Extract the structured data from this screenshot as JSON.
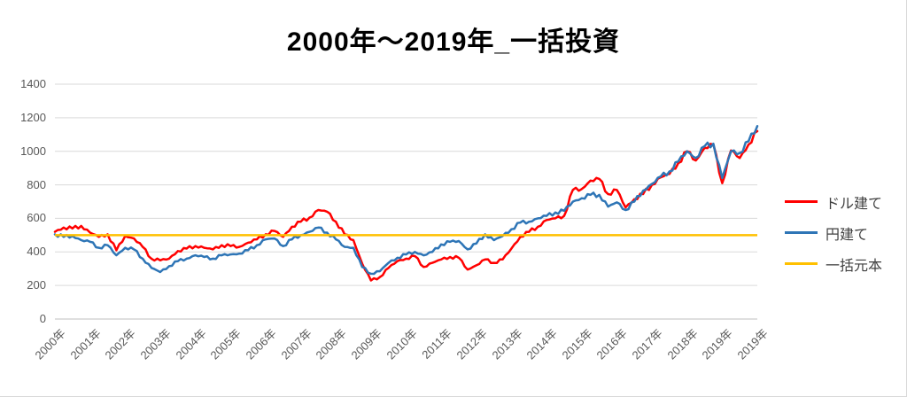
{
  "title": "2000年～2019年_一括投資",
  "colors": {
    "dollar_series": "#ff0000",
    "yen_series": "#2e75b6",
    "principal_line": "#ffc000",
    "gridline": "#d9d9d9",
    "axis_line": "#bfbfbf",
    "tick_text": "#595959",
    "legend_text": "#404040",
    "background": "#ffffff"
  },
  "legend": {
    "items": [
      {
        "label": "ドル建て",
        "color": "#ff0000"
      },
      {
        "label": "円建て",
        "color": "#2e75b6"
      },
      {
        "label": "一括元本",
        "color": "#ffc000"
      }
    ]
  },
  "chart_data": {
    "type": "line",
    "title": "2000年～2019年_一括投資",
    "xlabel": "",
    "ylabel": "",
    "ylim": [
      0,
      1400
    ],
    "y_ticks": [
      0,
      200,
      400,
      600,
      800,
      1000,
      1200,
      1400
    ],
    "grid": true,
    "legend_position": "right",
    "x_tick_labels": [
      "2000年",
      "2001年",
      "2002年",
      "2003年",
      "2004年",
      "2005年",
      "2006年",
      "2007年",
      "2008年",
      "2009年",
      "2010年",
      "2011年",
      "2012年",
      "2013年",
      "2014年",
      "2015年",
      "2016年",
      "2017年",
      "2018年",
      "2019年",
      "2019年"
    ],
    "x_range_years": [
      2000,
      2020
    ],
    "x": [
      2000.0,
      2000.25,
      2000.5,
      2000.75,
      2001.0,
      2001.25,
      2001.5,
      2001.75,
      2002.0,
      2002.25,
      2002.5,
      2002.75,
      2003.0,
      2003.25,
      2003.5,
      2003.75,
      2004.0,
      2004.25,
      2004.5,
      2004.75,
      2005.0,
      2005.25,
      2005.5,
      2005.75,
      2006.0,
      2006.25,
      2006.5,
      2006.75,
      2007.0,
      2007.25,
      2007.5,
      2007.75,
      2008.0,
      2008.25,
      2008.5,
      2008.75,
      2009.0,
      2009.25,
      2009.5,
      2009.75,
      2010.0,
      2010.25,
      2010.5,
      2010.75,
      2011.0,
      2011.25,
      2011.5,
      2011.75,
      2012.0,
      2012.25,
      2012.5,
      2012.75,
      2013.0,
      2013.25,
      2013.5,
      2013.75,
      2014.0,
      2014.25,
      2014.5,
      2014.75,
      2015.0,
      2015.25,
      2015.5,
      2015.75,
      2016.0,
      2016.25,
      2016.5,
      2016.75,
      2017.0,
      2017.25,
      2017.5,
      2017.75,
      2018.0,
      2018.25,
      2018.5,
      2018.75,
      2019.0,
      2019.25,
      2019.5,
      2019.75,
      2020.0
    ],
    "series": [
      {
        "name": "ドル建て",
        "color": "#ff0000",
        "values": [
          520,
          545,
          540,
          555,
          515,
          490,
          505,
          410,
          495,
          480,
          430,
          360,
          350,
          360,
          405,
          420,
          435,
          425,
          415,
          440,
          435,
          430,
          455,
          475,
          505,
          525,
          490,
          550,
          580,
          605,
          650,
          640,
          580,
          505,
          470,
          330,
          230,
          250,
          305,
          345,
          360,
          375,
          310,
          335,
          355,
          370,
          365,
          295,
          320,
          355,
          335,
          355,
          420,
          490,
          520,
          550,
          590,
          600,
          615,
          770,
          775,
          825,
          835,
          745,
          770,
          665,
          715,
          745,
          800,
          845,
          865,
          930,
          1000,
          945,
          1020,
          1040,
          810,
          1005,
          960,
          1040,
          1120
        ]
      },
      {
        "name": "円建て",
        "color": "#2e75b6",
        "values": [
          505,
          490,
          495,
          470,
          460,
          425,
          440,
          380,
          425,
          415,
          360,
          305,
          280,
          315,
          345,
          360,
          380,
          370,
          360,
          380,
          385,
          390,
          410,
          440,
          475,
          480,
          435,
          475,
          500,
          520,
          545,
          515,
          475,
          430,
          425,
          310,
          270,
          285,
          335,
          365,
          385,
          400,
          380,
          400,
          445,
          460,
          465,
          415,
          450,
          505,
          470,
          495,
          535,
          575,
          580,
          600,
          615,
          635,
          645,
          700,
          720,
          740,
          740,
          670,
          695,
          650,
          700,
          765,
          805,
          850,
          880,
          940,
          1000,
          960,
          1030,
          1045,
          840,
          1000,
          990,
          1060,
          1150
        ]
      },
      {
        "name": "一括元本",
        "color": "#ffc000",
        "constant": 500
      }
    ]
  }
}
